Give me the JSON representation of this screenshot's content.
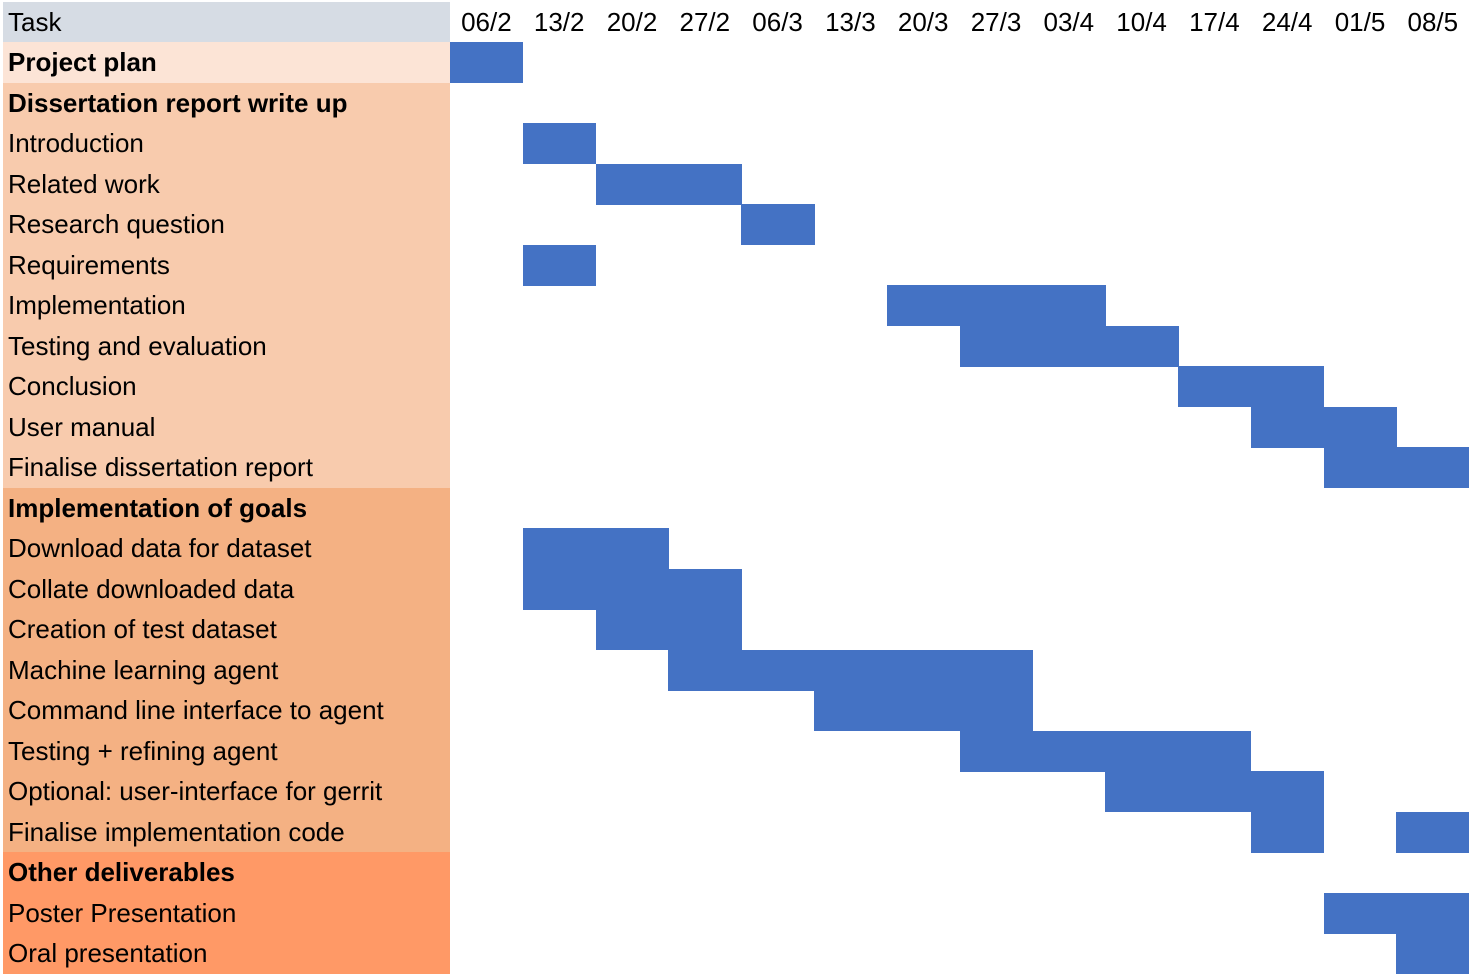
{
  "chart_data": {
    "type": "gantt",
    "header_label": "Task",
    "weeks": [
      "06/2",
      "13/2",
      "20/2",
      "27/2",
      "06/3",
      "13/3",
      "20/3",
      "27/3",
      "03/4",
      "10/4",
      "17/4",
      "24/4",
      "01/5",
      "08/5"
    ],
    "colors": {
      "header": "#D6DCE4",
      "bar": "#4472C4",
      "project_plan": "#FCE4D6",
      "dissertation": "#F8CBAD",
      "implementation": "#F4B183",
      "other": "#FF9966"
    },
    "tasks": [
      {
        "name": "Project plan",
        "bold": true,
        "group": "project_plan",
        "start": 0,
        "end": 1
      },
      {
        "name": "Dissertation report write up",
        "bold": true,
        "group": "dissertation"
      },
      {
        "name": "Introduction",
        "group": "dissertation",
        "start": 1,
        "end": 2
      },
      {
        "name": "Related work",
        "group": "dissertation",
        "start": 2,
        "end": 4
      },
      {
        "name": "Research question",
        "group": "dissertation",
        "start": 4,
        "end": 5
      },
      {
        "name": "Requirements",
        "group": "dissertation",
        "start": 1,
        "end": 2
      },
      {
        "name": "Implementation",
        "group": "dissertation",
        "start": 6,
        "end": 9
      },
      {
        "name": "Testing and evaluation",
        "group": "dissertation",
        "start": 7,
        "end": 10
      },
      {
        "name": "Conclusion",
        "group": "dissertation",
        "start": 10,
        "end": 12
      },
      {
        "name": "User manual",
        "group": "dissertation",
        "start": 11,
        "end": 13
      },
      {
        "name": "Finalise dissertation report",
        "group": "dissertation",
        "start": 12,
        "end": 14
      },
      {
        "name": "Implementation of goals",
        "bold": true,
        "group": "implementation"
      },
      {
        "name": "Download data for dataset",
        "group": "implementation",
        "start": 1,
        "end": 3
      },
      {
        "name": "Collate downloaded data",
        "group": "implementation",
        "start": 1,
        "end": 4
      },
      {
        "name": "Creation of test dataset",
        "group": "implementation",
        "start": 2,
        "end": 4
      },
      {
        "name": "Machine learning agent",
        "group": "implementation",
        "start": 3,
        "end": 8
      },
      {
        "name": "Command line interface to agent",
        "group": "implementation",
        "start": 5,
        "end": 8
      },
      {
        "name": "Testing + refining agent",
        "group": "implementation",
        "start": 7,
        "end": 11
      },
      {
        "name": "Optional: user-interface for gerrit",
        "group": "implementation",
        "start": 9,
        "end": 12
      },
      {
        "name": "Finalise implementation code",
        "group": "implementation",
        "segments": [
          [
            11,
            12
          ],
          [
            13,
            14
          ]
        ]
      },
      {
        "name": "Other deliverables",
        "bold": true,
        "group": "other"
      },
      {
        "name": "Poster Presentation",
        "group": "other",
        "start": 12,
        "end": 14
      },
      {
        "name": "Oral presentation",
        "group": "other",
        "start": 13,
        "end": 14
      }
    ]
  }
}
